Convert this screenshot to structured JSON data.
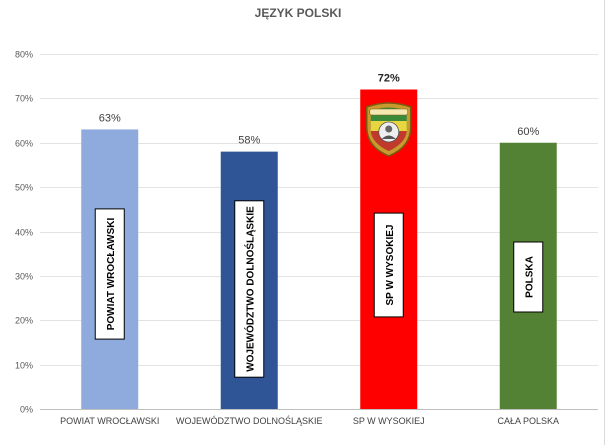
{
  "chart_data": {
    "type": "bar",
    "title": "JĘZYK POLSKI",
    "xlabel": "",
    "ylabel": "",
    "ylim": [
      0,
      80
    ],
    "y_ticks": [
      "0%",
      "10%",
      "20%",
      "30%",
      "40%",
      "50%",
      "60%",
      "70%",
      "80%"
    ],
    "grid": true,
    "legend": "none",
    "categories": [
      "POWIAT WROCŁAWSKI",
      "WOJEWÓDZTWO DOLNOŚLĄSKIE",
      "SP W WYSOKIEJ",
      "CAŁA POLSKA"
    ],
    "in_bar_labels": [
      "POWIAT WROCŁAWSKI",
      "WOJEWÓDZTWO DOLNOŚLĄSKIE",
      "SP W WYSOKIEJ",
      "POLSKA"
    ],
    "values": [
      63,
      58,
      72,
      60
    ],
    "data_labels": [
      "63%",
      "58%",
      "72%",
      "60%"
    ],
    "bar_colors": [
      "#8faadc",
      "#2f5597",
      "#ff0000",
      "#548235"
    ],
    "highlighted_bar": 2,
    "school_crest": "shield-crest-icon"
  }
}
